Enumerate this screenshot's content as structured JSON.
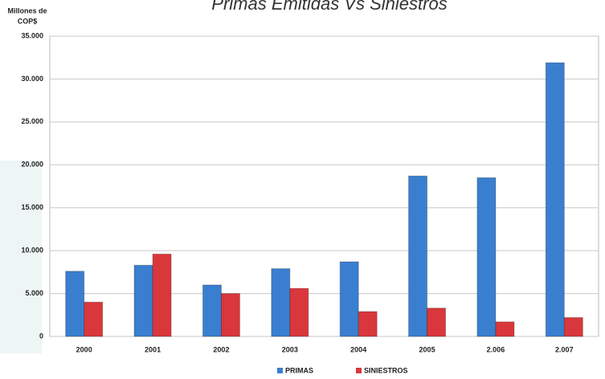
{
  "chart_data": {
    "type": "bar",
    "title": "Primas Emitidas Vs Siniestros",
    "y_label": [
      "Millones de",
      "COP$"
    ],
    "categories": [
      "2000",
      "2001",
      "2002",
      "2003",
      "2004",
      "2005",
      "2.006",
      "2.007"
    ],
    "series": [
      {
        "name": "PRIMAS",
        "color": "#3a7fcf",
        "values": [
          7600,
          8300,
          6000,
          7900,
          8700,
          18700,
          18500,
          31900
        ]
      },
      {
        "name": "SINIESTROS",
        "color": "#d9373b",
        "values": [
          4000,
          9600,
          5000,
          5600,
          2900,
          3300,
          1700,
          2200
        ]
      }
    ],
    "ylim": [
      0,
      35000
    ],
    "yticks": [
      0,
      {
        "value": 5000,
        "label": "5.000"
      },
      {
        "value": 10000,
        "label": "10.000"
      },
      {
        "value": 15000,
        "label": "15.000"
      },
      {
        "value": 20000,
        "label": "20.000"
      },
      {
        "value": 25000,
        "label": "25.000"
      },
      {
        "value": 30000,
        "label": "30.000"
      },
      {
        "value": 35000,
        "label": "35.000"
      }
    ],
    "grid": true,
    "legend": "bottom"
  }
}
